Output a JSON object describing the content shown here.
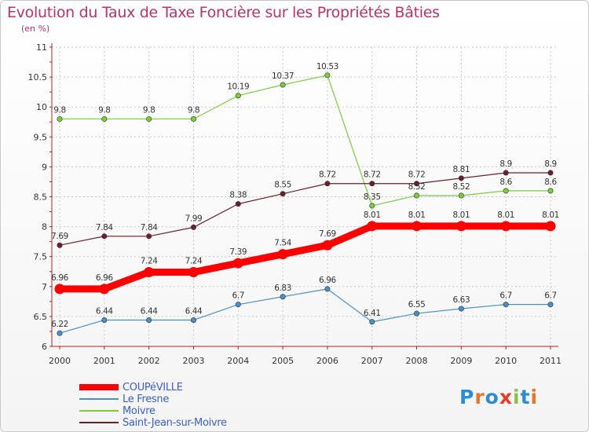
{
  "header": {
    "title": "Evolution du Taux de Taxe Foncière sur les Propriétés Bâties",
    "subtitle": "(en %)"
  },
  "brand": {
    "logo_text": "Proxiti"
  },
  "colors": {
    "title": "#b8336a",
    "axis": "#b22222",
    "grid": "#c8c8c8",
    "logo": [
      "#2e8bd6",
      "#e8762a",
      "#2e8bd6",
      "#e83a2a",
      "#8bc34a",
      "#2e8bd6",
      "#e8762a"
    ]
  },
  "chart_data": {
    "type": "line",
    "title": "Evolution du Taux de Taxe Foncière sur les Propriétés Bâties",
    "subtitle": "(en %)",
    "xlabel": "",
    "ylabel": "",
    "x": [
      "2000",
      "2001",
      "2002",
      "2003",
      "2004",
      "2005",
      "2006",
      "2007",
      "2008",
      "2009",
      "2010",
      "2011"
    ],
    "y_ticks": [
      "6",
      "6.5",
      "7",
      "7.5",
      "8",
      "8.5",
      "9",
      "9.5",
      "10",
      "10.5",
      "11"
    ],
    "ylim": [
      6,
      11
    ],
    "grid": true,
    "legend_position": "bottom-left",
    "series": [
      {
        "name": "COUPéVILLE",
        "color": "#ff0000",
        "emphasis": true,
        "values": [
          6.96,
          6.96,
          7.24,
          7.24,
          7.39,
          7.54,
          7.69,
          8.01,
          8.01,
          8.01,
          8.01,
          8.01
        ],
        "labels": [
          "6.96",
          "6.96",
          "7.24",
          "7.24",
          "7.39",
          "7.54",
          "7.69",
          "8.01",
          "8.01",
          "8.01",
          "8.01",
          "8.01"
        ]
      },
      {
        "name": "Le Fresne",
        "color": "#4a90c8",
        "emphasis": false,
        "values": [
          6.22,
          6.44,
          6.44,
          6.44,
          6.7,
          6.83,
          6.96,
          6.41,
          6.55,
          6.63,
          6.7,
          6.7
        ],
        "labels": [
          "6.22",
          "6.44",
          "6.44",
          "6.44",
          "6.7",
          "6.83",
          "6.96",
          "6.41",
          "6.55",
          "6.63",
          "6.7",
          "6.7"
        ]
      },
      {
        "name": "Moivre",
        "color": "#7ccd3c",
        "emphasis": false,
        "values": [
          9.8,
          9.8,
          9.8,
          9.8,
          10.19,
          10.37,
          10.53,
          8.35,
          8.52,
          8.52,
          8.6,
          8.6
        ],
        "labels": [
          "9.8",
          "9.8",
          "9.8",
          "9.8",
          "10.19",
          "10.37",
          "10.53",
          "8.35",
          "8.52",
          "8.52",
          "8.6",
          "8.6"
        ]
      },
      {
        "name": "Saint-Jean-sur-Moivre",
        "color": "#6b1f2a",
        "emphasis": false,
        "values": [
          7.69,
          7.84,
          7.84,
          7.99,
          8.38,
          8.55,
          8.72,
          8.72,
          8.72,
          8.81,
          8.9,
          8.9
        ],
        "labels": [
          "7.69",
          "7.84",
          "7.84",
          "7.99",
          "8.38",
          "8.55",
          "8.72",
          "8.72",
          "8.72",
          "8.81",
          "8.9",
          "8.9"
        ]
      }
    ]
  }
}
